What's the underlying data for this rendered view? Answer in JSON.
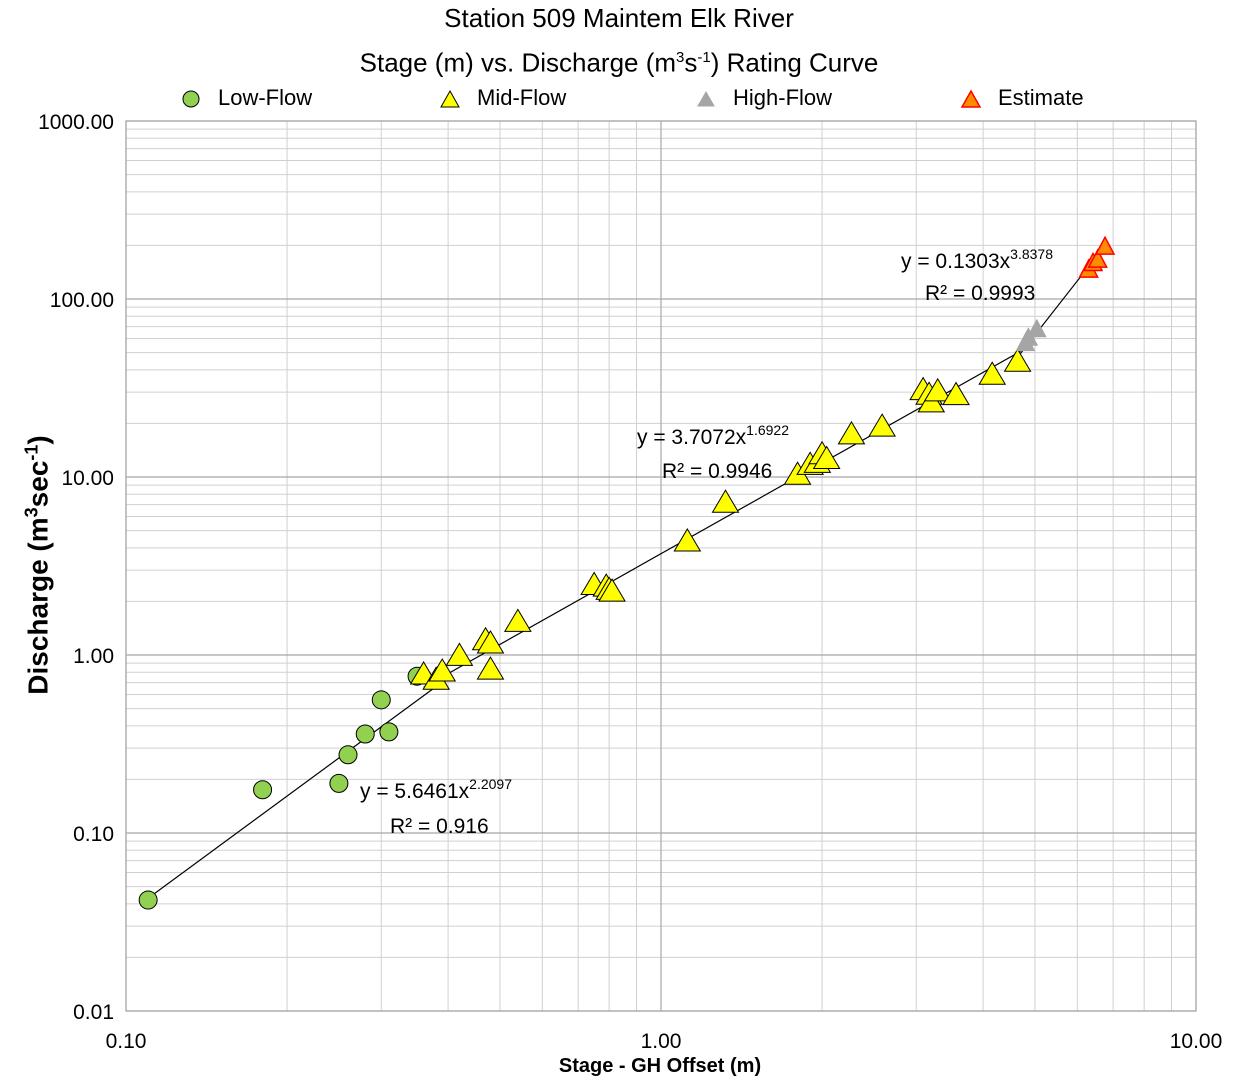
{
  "chart_data": {
    "type": "scatter",
    "title": "Station 509 Maintem Elk River",
    "subtitle": {
      "pre": "Stage (m) vs. Discharge (m",
      "sup1": "3",
      "mid": "s",
      "sup2": "-1",
      "post": ") Rating Curve"
    },
    "xlabel": "Stage - GH Offset (m)",
    "ylabel": {
      "pre": "Discharge (m",
      "sup1": "3",
      "mid": "sec",
      "sup2": "-1",
      "post": ")"
    },
    "x_scale": "log",
    "y_scale": "log",
    "xlim": [
      0.1,
      10
    ],
    "ylim": [
      0.01,
      1000
    ],
    "x_ticks": [
      "0.10",
      "1.00",
      "10.00"
    ],
    "y_ticks": [
      "0.01",
      "0.10",
      "1.00",
      "10.00",
      "100.00",
      "1000.00"
    ],
    "grid": true,
    "legend_position": "top",
    "series": [
      {
        "name": "Low-Flow",
        "marker": "circle",
        "color": "#92d050",
        "edge": "#000000",
        "points": [
          [
            0.11,
            0.042
          ],
          [
            0.18,
            0.175
          ],
          [
            0.25,
            0.19
          ],
          [
            0.26,
            0.275
          ],
          [
            0.28,
            0.36
          ],
          [
            0.3,
            0.56
          ],
          [
            0.31,
            0.37
          ],
          [
            0.35,
            0.76
          ]
        ]
      },
      {
        "name": "Mid-Flow",
        "marker": "triangle",
        "color": "#ffff00",
        "edge": "#000000",
        "points": [
          [
            0.36,
            0.77
          ],
          [
            0.38,
            0.72
          ],
          [
            0.39,
            0.8
          ],
          [
            0.42,
            0.98
          ],
          [
            0.47,
            1.2
          ],
          [
            0.48,
            0.82
          ],
          [
            0.48,
            1.15
          ],
          [
            0.54,
            1.52
          ],
          [
            0.75,
            2.45
          ],
          [
            0.79,
            2.4
          ],
          [
            0.8,
            2.3
          ],
          [
            0.81,
            2.25
          ],
          [
            1.12,
            4.3
          ],
          [
            1.32,
            7.1
          ],
          [
            1.8,
            10.2
          ],
          [
            1.9,
            11.6
          ],
          [
            1.96,
            11.9
          ],
          [
            2.0,
            13.3
          ],
          [
            2.04,
            12.5
          ],
          [
            2.27,
            17.2
          ],
          [
            2.59,
            19.0
          ],
          [
            3.09,
            30.5
          ],
          [
            3.17,
            28.7
          ],
          [
            3.2,
            26.0
          ],
          [
            3.29,
            30.0
          ],
          [
            3.56,
            28.6
          ],
          [
            4.16,
            37.2
          ],
          [
            4.64,
            44.0
          ]
        ]
      },
      {
        "name": "High-Flow",
        "marker": "triangle",
        "color": "#a5a5a5",
        "edge": "#a5a5a5",
        "points": [
          [
            4.8,
            56.0
          ],
          [
            4.86,
            60.0
          ],
          [
            5.04,
            67.0
          ]
        ]
      },
      {
        "name": "Estimate",
        "marker": "triangle",
        "color": "#ff8c00",
        "edge": "#ff0000",
        "points": [
          [
            6.3,
            145.0
          ],
          [
            6.42,
            158.0
          ],
          [
            6.55,
            165.0
          ],
          [
            6.76,
            195.0
          ]
        ]
      }
    ],
    "trendlines": [
      {
        "from": 0.11,
        "to": 0.4,
        "a": 5.6461,
        "b": 2.2097
      },
      {
        "from": 0.36,
        "to": 4.7,
        "a": 3.7072,
        "b": 1.6922
      },
      {
        "from": 4.7,
        "to": 6.4,
        "a": 0.1303,
        "b": 3.8378
      }
    ],
    "annotations": [
      {
        "eq_pre": "y = 5.6461x",
        "eq_sup": "2.2097",
        "r2": "R² = 0.916"
      },
      {
        "eq_pre": "y = 3.7072x",
        "eq_sup": "1.6922",
        "r2": "R² = 0.9946"
      },
      {
        "eq_pre": "y = 0.1303x",
        "eq_sup": "3.8378",
        "r2": "R² = 0.9993"
      }
    ]
  }
}
